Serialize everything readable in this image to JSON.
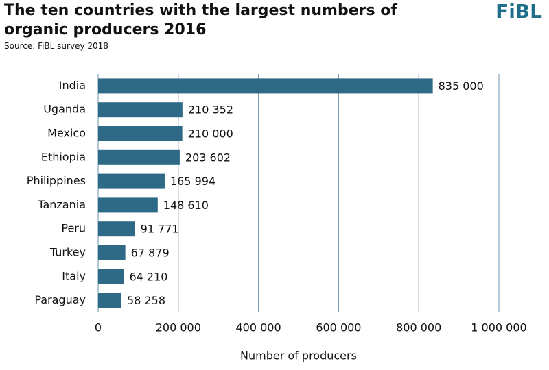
{
  "logo": "FiBL",
  "chart_data": {
    "type": "bar",
    "orientation": "horizontal",
    "title": "The ten countries with the largest numbers of organic producers 2016",
    "subtitle": "Source: FiBL survey 2018",
    "x_label": "Number of producers",
    "categories": [
      "India",
      "Uganda",
      "Mexico",
      "Ethiopia",
      "Philippines",
      "Tanzania",
      "Peru",
      "Turkey",
      "Italy",
      "Paraguay"
    ],
    "values": [
      835000,
      210352,
      210000,
      203602,
      165994,
      148610,
      91771,
      67879,
      64210,
      58258
    ],
    "value_labels": [
      "835 000",
      "210 352",
      "210 000",
      "203 602",
      "165 994",
      "148 610",
      "91 771",
      "67 879",
      "64 210",
      "58 258"
    ],
    "color": "#2e6a86",
    "xlim": [
      0,
      1000000
    ],
    "xticks": [
      0,
      {
        "value": 200000,
        "label": "200 000"
      },
      {
        "value": 400000,
        "label": "400 000"
      },
      {
        "value": 600000,
        "label": "600 000"
      },
      {
        "value": 800000,
        "label": "800 000"
      },
      {
        "value": 1000000,
        "label": "1 000 000"
      }
    ],
    "grid": true
  }
}
